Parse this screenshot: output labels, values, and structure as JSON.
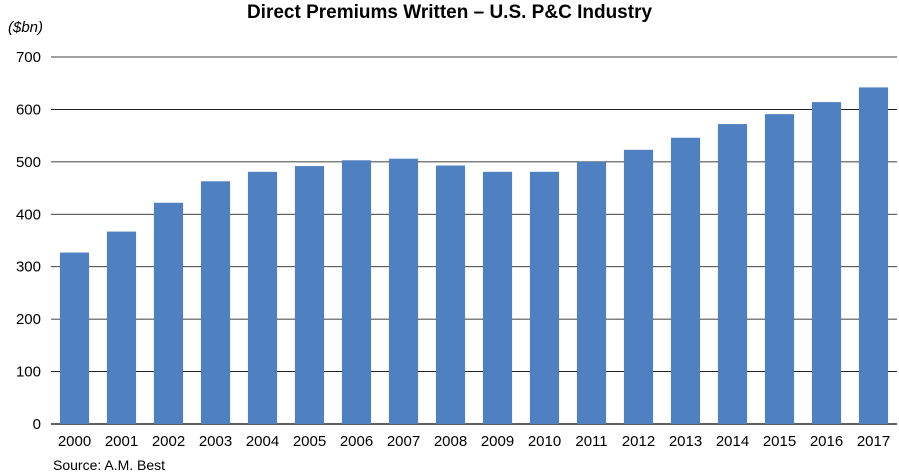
{
  "chart_data": {
    "type": "bar",
    "title": "Direct Premiums Written – U.S. P&C Industry",
    "ylabel": "($bn)",
    "xlabel": "",
    "source": "Source: A.M. Best",
    "categories": [
      "2000",
      "2001",
      "2002",
      "2003",
      "2004",
      "2005",
      "2006",
      "2007",
      "2008",
      "2009",
      "2010",
      "2011",
      "2012",
      "2013",
      "2014",
      "2015",
      "2016",
      "2017"
    ],
    "values": [
      327,
      367,
      422,
      463,
      481,
      492,
      503,
      506,
      493,
      481,
      481,
      500,
      523,
      546,
      572,
      591,
      614,
      642
    ],
    "ylim": [
      0,
      700
    ],
    "yticks": [
      0,
      100,
      200,
      300,
      400,
      500,
      600,
      700
    ],
    "grid": true,
    "colors": {
      "bar": "#4f81c2",
      "grid": "#000000",
      "axis": "#000000"
    }
  }
}
